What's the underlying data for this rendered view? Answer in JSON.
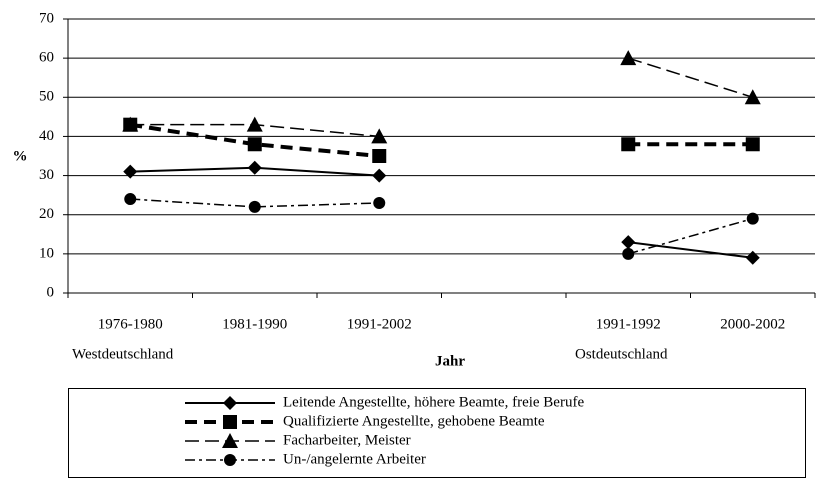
{
  "chart_data": {
    "type": "line",
    "x_label": "Jahr",
    "y_label": "%",
    "groups": [
      "Westdeutschland",
      "Ostdeutschland"
    ],
    "categories": [
      "1976-1980",
      "1981-1990",
      "1991-2002",
      null,
      "1991-1992",
      "2000-2002"
    ],
    "ylim": [
      0,
      70
    ],
    "yticks": [
      0,
      10,
      20,
      30,
      40,
      50,
      60,
      70
    ],
    "grid": true,
    "series": [
      {
        "name": "Leitende Angestellte, höhere Beamte, freie Berufe",
        "color": "#000000",
        "dash": "solid",
        "marker": "diamond",
        "values": [
          31,
          32,
          30,
          null,
          13,
          9
        ]
      },
      {
        "name": "Qualifizierte Angestellte, gehobene Beamte",
        "color": "#000000",
        "dash": "thick-dash",
        "marker": "square",
        "values": [
          43,
          38,
          35,
          null,
          38,
          38
        ]
      },
      {
        "name": "Facharbeiter, Meister",
        "color": "#000000",
        "dash": "long-dash",
        "marker": "triangle",
        "values": [
          43,
          43,
          40,
          null,
          60,
          50
        ]
      },
      {
        "name": "Un-/angelernte Arbeiter",
        "color": "#000000",
        "dash": "dash-dot",
        "marker": "circle",
        "values": [
          24,
          22,
          23,
          null,
          10,
          19
        ]
      }
    ]
  }
}
